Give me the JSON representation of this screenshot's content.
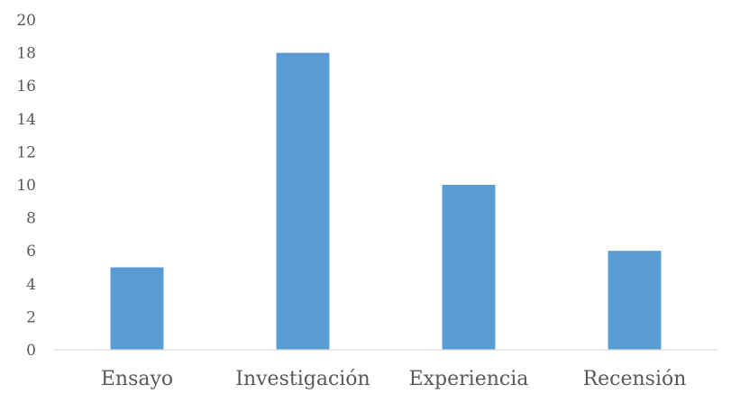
{
  "chart_data": {
    "type": "bar",
    "title": "",
    "xlabel": "",
    "ylabel": "",
    "categories": [
      "Ensayo",
      "Investigación",
      "Experiencia",
      "Recensión"
    ],
    "values": [
      5,
      18,
      10,
      6
    ],
    "ylim": [
      0,
      20
    ],
    "yticks": [
      "0",
      "2",
      "4",
      "6",
      "8",
      "10",
      "12",
      "14",
      "16",
      "18",
      "20"
    ],
    "grid": false,
    "legend": "none",
    "colors": {
      "bar": "#5b9bd5",
      "axis": "#d9d9d9",
      "text": "#595959"
    }
  }
}
